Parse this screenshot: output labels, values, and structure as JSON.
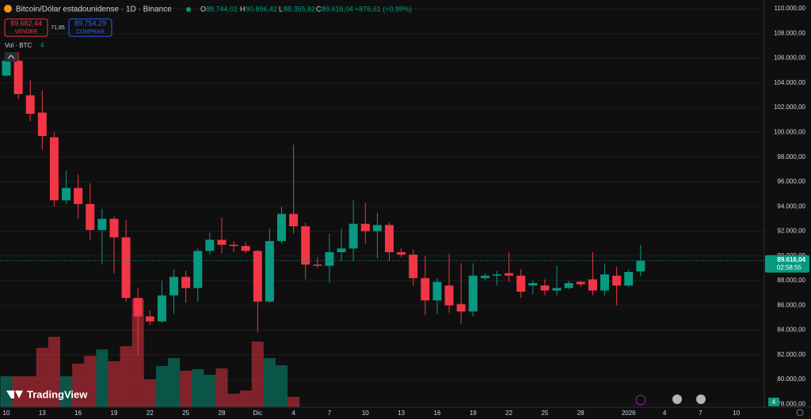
{
  "chart_data": {
    "type": "candlestick",
    "title": "Bitcoin/Dólar estadounidense · 1D · Binance",
    "header": {
      "o_label": "O",
      "o": "88.744,02",
      "h_label": "H",
      "h": "90.896,42",
      "l_label": "L",
      "l": "88.355,82",
      "c_label": "C",
      "c": "89.616,04",
      "change": "+876,61 (+0,99%)"
    },
    "trade": {
      "sell_price": "89.682,44",
      "sell": "VENDER",
      "spread": "71,85",
      "buy_price": "89.754,29",
      "buy": "COMPRAR"
    },
    "volume_name": "Vol · BTC",
    "price_label": "89.616,04",
    "countdown": "02:58:55",
    "brand": "TradingView",
    "up_color": "#089981",
    "down_color": "#f23645",
    "categories": [
      "10",
      null,
      null,
      "13",
      null,
      null,
      "16",
      null,
      null,
      "19",
      null,
      null,
      "22",
      null,
      null,
      "25",
      null,
      null,
      "28",
      null,
      null,
      "Dic",
      null,
      null,
      "4",
      null,
      null,
      "7",
      null,
      null,
      "10",
      null,
      null,
      "13",
      null,
      null,
      "16",
      null,
      null,
      "19",
      null,
      null,
      "22",
      null,
      null,
      "25",
      null,
      null,
      "28",
      null,
      null,
      null,
      "2026",
      null,
      null,
      "4",
      null,
      null,
      "7",
      null,
      null,
      "10",
      null
    ],
    "open": [
      104600,
      105800,
      103000,
      101600,
      99600,
      94500,
      95500,
      94200,
      92100,
      93000,
      91500,
      86600,
      85100,
      84700,
      86800,
      88300,
      87400,
      90400,
      91300,
      90900,
      90800,
      90400,
      86300,
      91200,
      93400,
      92400,
      89300,
      89200,
      90300,
      90600,
      92600,
      92000,
      92500,
      90300,
      90100,
      88200,
      86400,
      87600,
      86100,
      85500,
      88200,
      88400,
      88600,
      88400,
      87600,
      87600,
      87200,
      87400,
      87900,
      88100,
      87200,
      88400,
      87600,
      88744.02,
      null,
      null,
      null,
      null,
      null,
      null,
      null,
      null,
      null
    ],
    "high": [
      106500,
      106500,
      104200,
      103400,
      100000,
      96900,
      96600,
      95900,
      93800,
      93200,
      92900,
      87400,
      85600,
      88000,
      88900,
      88800,
      90600,
      91900,
      93100,
      91200,
      91100,
      90500,
      92200,
      94000,
      99000,
      92700,
      89900,
      91800,
      92200,
      94500,
      94300,
      93500,
      92700,
      90600,
      90500,
      90000,
      88200,
      90200,
      89400,
      89400,
      88600,
      88800,
      90300,
      88900,
      88000,
      88100,
      89200,
      88000,
      88000,
      90300,
      89300,
      89100,
      88900,
      90896.42,
      null,
      null,
      null,
      null,
      null,
      null,
      null,
      null,
      null
    ],
    "low": [
      104500,
      102700,
      100900,
      98600,
      94000,
      94200,
      93000,
      91300,
      89300,
      88600,
      86300,
      82000,
      84400,
      84600,
      85300,
      86200,
      86300,
      90100,
      90200,
      90300,
      90200,
      83800,
      86200,
      91000,
      91800,
      88100,
      89000,
      87800,
      89600,
      89600,
      91000,
      89800,
      89600,
      89900,
      87600,
      85200,
      85300,
      85400,
      84500,
      85100,
      88000,
      87600,
      87900,
      86600,
      86900,
      86800,
      86800,
      87300,
      87500,
      86800,
      86800,
      86000,
      87500,
      88355.82,
      null,
      null,
      null,
      null,
      null,
      null,
      null,
      null,
      null
    ],
    "close": [
      105800,
      103100,
      101500,
      99700,
      94500,
      95500,
      94200,
      92100,
      93000,
      91500,
      86600,
      85100,
      84700,
      86800,
      88300,
      87400,
      90400,
      91300,
      90900,
      90800,
      90400,
      86300,
      91200,
      93400,
      92400,
      89300,
      89200,
      90300,
      90600,
      92600,
      92000,
      92500,
      90300,
      90100,
      88200,
      86400,
      87900,
      86000,
      85500,
      88400,
      88400,
      88500,
      88400,
      87100,
      87800,
      87200,
      87400,
      87800,
      87700,
      87200,
      88500,
      87600,
      88700,
      89616.04,
      null,
      null,
      null,
      null,
      null,
      null,
      null,
      null,
      null
    ],
    "volume": [
      7800,
      7800,
      7800,
      15000,
      17800,
      7800,
      11000,
      13000,
      14600,
      11600,
      15400,
      27400,
      7000,
      10400,
      12400,
      9200,
      9600,
      8200,
      9800,
      3400,
      4200,
      16600,
      12400,
      10600,
      2600,
      100,
      100,
      100,
      100,
      100,
      100,
      100,
      100,
      100,
      100,
      100,
      100,
      100,
      100,
      100,
      100,
      100,
      100,
      100,
      100,
      100,
      100,
      100,
      100,
      100,
      100,
      100,
      100,
      4,
      null,
      null,
      null,
      null,
      null,
      null,
      null,
      null,
      null
    ],
    "ylim": [
      77760,
      110710
    ],
    "yticks": [
      {
        "value": 78000,
        "label": "78.000,00"
      },
      {
        "value": 80000,
        "label": "80.000,00"
      },
      {
        "value": 82000,
        "label": "82.000,00"
      },
      {
        "value": 84000,
        "label": "84.000,00"
      },
      {
        "value": 86000,
        "label": "86.000,00"
      },
      {
        "value": 88000,
        "label": "88.000,00"
      },
      {
        "value": 90000,
        "label": "90.000,00"
      },
      {
        "value": 92000,
        "label": "92.000,00"
      },
      {
        "value": 94000,
        "label": "94.000,00"
      },
      {
        "value": 96000,
        "label": "96.000,00"
      },
      {
        "value": 98000,
        "label": "98.000,00"
      },
      {
        "value": 100000,
        "label": "100.000,00"
      },
      {
        "value": 102000,
        "label": "102.000,00"
      },
      {
        "value": 104000,
        "label": "104.000,00"
      },
      {
        "value": 106000,
        "label": "106.000,00"
      },
      {
        "value": 108000,
        "label": "108.000,00"
      },
      {
        "value": 110000,
        "label": "110.000,00"
      }
    ],
    "grid": true
  }
}
